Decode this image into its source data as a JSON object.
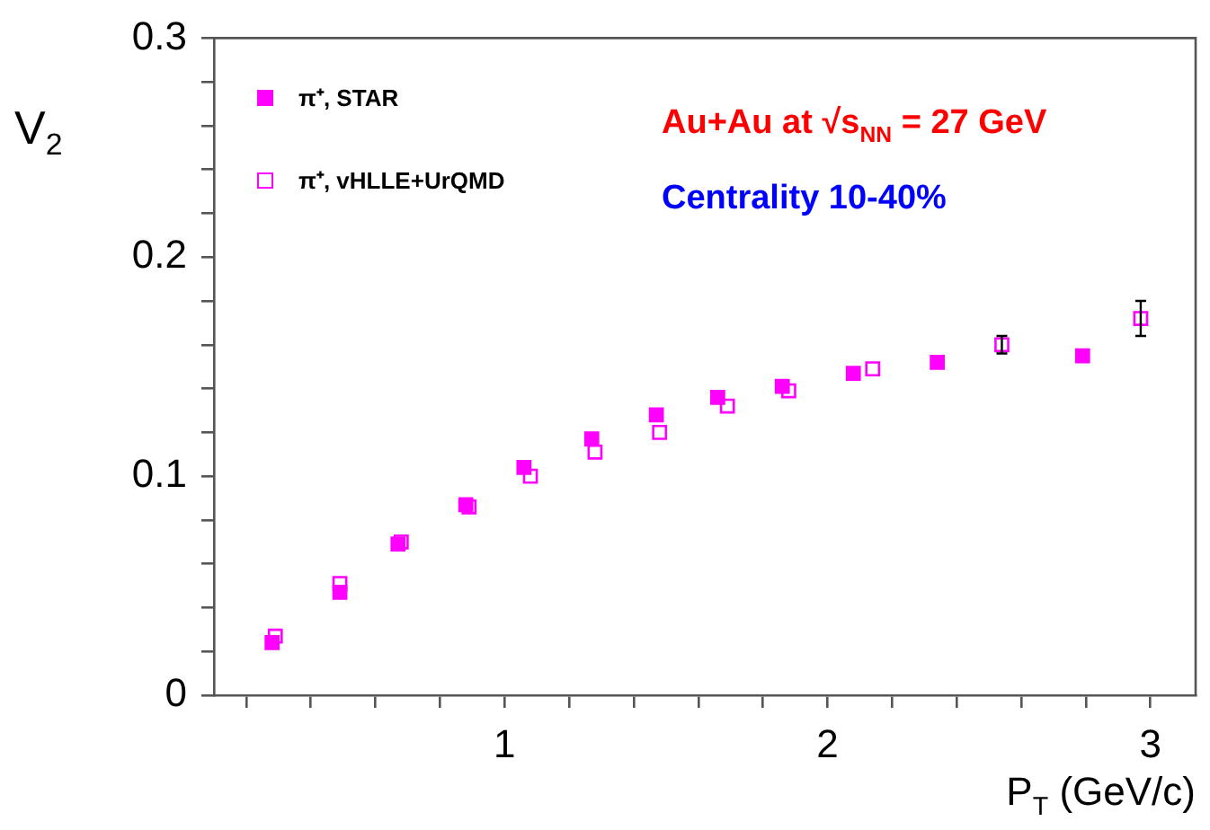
{
  "chart_data": {
    "type": "scatter",
    "xlabel": "P$_{T}$ (GeV/c)",
    "ylabel": "V$_{2}$",
    "annotations": [
      "Au+Au at √s$_{NN}$ = 27  GeV",
      "Centrality 10-40%"
    ],
    "series": [
      {
        "name": "π⁺, STAR",
        "color": "#ff00ff",
        "x": [
          0.28,
          0.49,
          0.67,
          0.88,
          1.06,
          1.27,
          1.47,
          1.66,
          1.86,
          2.08,
          2.34,
          2.79
        ],
        "values": [
          0.024,
          0.047,
          0.069,
          0.087,
          0.104,
          0.117,
          0.128,
          0.136,
          0.141,
          0.147,
          0.152,
          0.155
        ]
      },
      {
        "name": "π⁺, vHLLE+UrQMD",
        "color": "#ff00ff",
        "x": [
          0.29,
          0.49,
          0.68,
          0.89,
          1.08,
          1.28,
          1.48,
          1.69,
          1.88,
          2.14,
          2.54,
          2.97
        ],
        "values": [
          0.027,
          0.051,
          0.07,
          0.086,
          0.1,
          0.111,
          0.12,
          0.132,
          0.139,
          0.149,
          0.16,
          0.172
        ],
        "errors": [
          null,
          null,
          null,
          null,
          null,
          null,
          null,
          null,
          null,
          null,
          0.004,
          0.008
        ]
      }
    ],
    "marker": "square",
    "legend": "top left",
    "grid": false,
    "xlim": [
      0.1,
      3.14
    ],
    "ylim": [
      0,
      0.3
    ],
    "xticks": [
      {
        "value": 0.2,
        "label": null
      },
      {
        "value": 0.4,
        "label": null
      },
      {
        "value": 0.6,
        "label": null
      },
      {
        "value": 0.8,
        "label": null
      },
      1,
      {
        "value": 1.2,
        "label": null
      },
      {
        "value": 1.4,
        "label": null
      },
      {
        "value": 1.6,
        "label": null
      },
      {
        "value": 1.8,
        "label": null
      },
      2,
      {
        "value": 2.2,
        "label": null
      },
      {
        "value": 2.4,
        "label": null
      },
      {
        "value": 2.6,
        "label": null
      },
      {
        "value": 2.8,
        "label": null
      },
      3
    ],
    "yticks": [
      0,
      {
        "value": 0.02,
        "label": null
      },
      {
        "value": 0.04,
        "label": null
      },
      {
        "value": 0.06,
        "label": null
      },
      {
        "value": 0.08,
        "label": null
      },
      0.1,
      {
        "value": 0.12,
        "label": null
      },
      {
        "value": 0.14,
        "label": null
      },
      {
        "value": 0.16,
        "label": null
      },
      {
        "value": 0.18,
        "label": null
      },
      0.2,
      {
        "value": 0.22,
        "label": null
      },
      {
        "value": 0.24,
        "label": null
      },
      {
        "value": 0.26,
        "label": null
      },
      {
        "value": 0.28,
        "label": null
      },
      0.3
    ]
  }
}
